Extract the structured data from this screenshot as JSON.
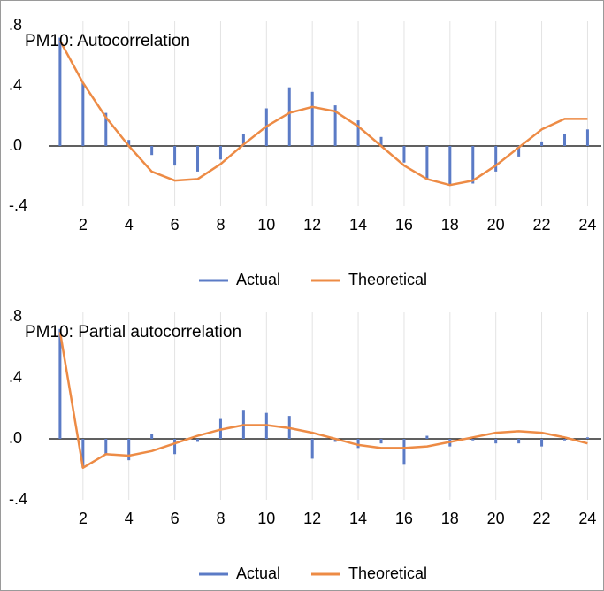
{
  "chart_data": [
    {
      "type": "combo",
      "title": "PM10: Autocorrelation",
      "x": [
        1,
        2,
        3,
        4,
        5,
        6,
        7,
        8,
        9,
        10,
        11,
        12,
        13,
        14,
        15,
        16,
        17,
        18,
        19,
        20,
        21,
        22,
        23,
        24
      ],
      "series": [
        {
          "name": "Actual",
          "kind": "bar",
          "color": "#5b7bc6",
          "values": [
            0.72,
            0.42,
            0.22,
            0.04,
            -0.06,
            -0.13,
            -0.17,
            -0.09,
            0.08,
            0.25,
            0.39,
            0.36,
            0.27,
            0.17,
            0.06,
            -0.11,
            -0.22,
            -0.26,
            -0.25,
            -0.17,
            -0.07,
            0.03,
            0.08,
            0.11
          ]
        },
        {
          "name": "Theoretical",
          "kind": "line",
          "color": "#ed8b45",
          "values": [
            0.7,
            0.42,
            0.19,
            0.0,
            -0.17,
            -0.23,
            -0.22,
            -0.12,
            0.01,
            0.13,
            0.22,
            0.26,
            0.23,
            0.13,
            0.0,
            -0.13,
            -0.22,
            -0.26,
            -0.23,
            -0.13,
            -0.01,
            0.11,
            0.18,
            0.18
          ]
        }
      ],
      "xlim": [
        0.85,
        24.6
      ],
      "xticks": [
        2,
        4,
        6,
        8,
        10,
        12,
        14,
        16,
        18,
        20,
        22,
        24
      ],
      "ylim": [
        -0.4,
        0.8
      ],
      "yticks": [
        {
          "value": -0.4,
          "label": "-.4"
        },
        {
          "value": 0,
          "label": ".0"
        },
        {
          "value": 0.4,
          "label": ".4"
        },
        {
          "value": 0.8,
          "label": ".8"
        }
      ],
      "grid": true,
      "legend": "bottom"
    },
    {
      "type": "combo",
      "title": "PM10: Partial autocorrelation",
      "x": [
        1,
        2,
        3,
        4,
        5,
        6,
        7,
        8,
        9,
        10,
        11,
        12,
        13,
        14,
        15,
        16,
        17,
        18,
        19,
        20,
        21,
        22,
        23,
        24
      ],
      "series": [
        {
          "name": "Actual",
          "kind": "bar",
          "color": "#5b7bc6",
          "values": [
            0.72,
            -0.19,
            -0.1,
            -0.14,
            0.03,
            -0.1,
            -0.02,
            0.13,
            0.19,
            0.17,
            0.15,
            -0.13,
            -0.02,
            -0.06,
            -0.03,
            -0.17,
            0.02,
            -0.05,
            -0.01,
            -0.03,
            -0.03,
            -0.05,
            -0.01,
            0.01
          ]
        },
        {
          "name": "Theoretical",
          "kind": "line",
          "color": "#ed8b45",
          "values": [
            0.7,
            -0.19,
            -0.1,
            -0.11,
            -0.08,
            -0.03,
            0.02,
            0.06,
            0.09,
            0.09,
            0.07,
            0.04,
            0.0,
            -0.04,
            -0.06,
            -0.06,
            -0.05,
            -0.02,
            0.01,
            0.04,
            0.05,
            0.04,
            0.01,
            -0.03
          ]
        }
      ],
      "xlim": [
        0.85,
        24.6
      ],
      "xticks": [
        2,
        4,
        6,
        8,
        10,
        12,
        14,
        16,
        18,
        20,
        22,
        24
      ],
      "ylim": [
        -0.4,
        0.8
      ],
      "yticks": [
        {
          "value": -0.4,
          "label": "-.4"
        },
        {
          "value": 0,
          "label": ".0"
        },
        {
          "value": 0.4,
          "label": ".4"
        },
        {
          "value": 0.8,
          "label": ".8"
        }
      ],
      "grid": true,
      "legend": "bottom"
    }
  ]
}
